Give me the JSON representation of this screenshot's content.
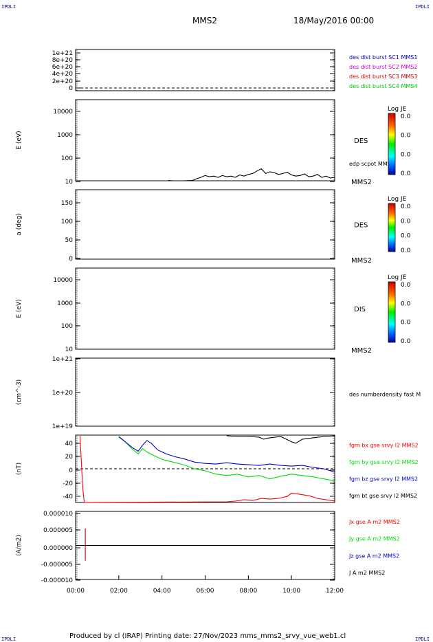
{
  "header": {
    "corner_left": "IPDLI",
    "corner_right": "IPDLI",
    "corner_bottom_left": "IPDLI",
    "corner_bottom_right": "IPDLI",
    "spacecraft": "MMS2",
    "date": "18/May/2016 00:00"
  },
  "footer": {
    "text": "Produced by cl (IRAP)   Printing date: 27/Nov/2023   mms_mms2_srvy_vue_web1.cl"
  },
  "colors": {
    "mms1": "#0000cc",
    "mms2": "#cc00cc",
    "mms3": "#cc0000",
    "mms4": "#00cc00",
    "bx": "#ff0000",
    "by": "#00dd00",
    "bz": "#0000cc",
    "bt": "#000000"
  },
  "chart_data": [
    {
      "type": "line",
      "id": "panel1",
      "ylabel": "",
      "yticks": [
        "1e+21",
        "8e+20",
        "6e+20",
        "4e+20",
        "2e+20",
        "0"
      ],
      "legend": [
        {
          "text": "des dist burst SC1 MMS1",
          "color": "#0000cc"
        },
        {
          "text": "des dist burst SC2 MMS2",
          "color": "#cc00cc"
        },
        {
          "text": "des dist burst SC3 MMS3",
          "color": "#cc0000"
        },
        {
          "text": "des dist burst SC4 MMS4",
          "color": "#00cc00"
        }
      ],
      "series": []
    },
    {
      "type": "line",
      "id": "panel2",
      "scale": "log",
      "ylabel": "E (eV)",
      "yticks": [
        "10000",
        "1000",
        "100",
        "10"
      ],
      "side_label": "DES",
      "sc_label": "MMS2",
      "series_label": "edp scpot MMS2",
      "colorbar": {
        "title": "Log JE",
        "ticks": [
          "0.0",
          "0.0",
          "0.0",
          "0.0"
        ]
      },
      "series": [
        {
          "name": "edp scpot MMS2",
          "color": "#000000",
          "x_hours": [
            4.3,
            4.5,
            5.0,
            5.4,
            5.6,
            5.8,
            6.0,
            6.2,
            6.4,
            6.6,
            6.8,
            7.0,
            7.2,
            7.4,
            7.6,
            7.8,
            8.0,
            8.2,
            8.4,
            8.6,
            8.8,
            9.0,
            9.2,
            9.4,
            9.6,
            9.8,
            10.0,
            10.2,
            10.4,
            10.6,
            10.8,
            11.0,
            11.2,
            11.4,
            11.6,
            11.8,
            12.0
          ],
          "y_ev": [
            11,
            10,
            10,
            11,
            13,
            15,
            18,
            16,
            17,
            15,
            18,
            16,
            17,
            15,
            19,
            17,
            20,
            22,
            28,
            35,
            22,
            26,
            24,
            20,
            22,
            25,
            19,
            17,
            18,
            21,
            16,
            17,
            20,
            15,
            17,
            14,
            15
          ]
        }
      ]
    },
    {
      "type": "line",
      "id": "panel3",
      "ylabel": "a (deg)",
      "yticks": [
        "150",
        "100",
        "50",
        "0"
      ],
      "side_label": "DES",
      "sc_label": "MMS2",
      "colorbar": {
        "title": "Log JE",
        "ticks": [
          "0.0",
          "0.0",
          "0.0",
          "0.0"
        ]
      },
      "series": []
    },
    {
      "type": "line",
      "id": "panel4",
      "scale": "log",
      "ylabel": "E (eV)",
      "yticks": [
        "10000",
        "1000",
        "100",
        "10"
      ],
      "side_label": "DIS",
      "sc_label": "MMS2",
      "colorbar": {
        "title": "Log JE",
        "ticks": [
          "0.0",
          "0.0",
          "0.0",
          "0.0"
        ]
      },
      "series": []
    },
    {
      "type": "line",
      "id": "panel5",
      "scale": "log",
      "ylabel": "(cm^-3)",
      "yticks": [
        "1e+21",
        "1e+20",
        "1e+19"
      ],
      "series_label": "des numberdensity fast M",
      "series": []
    },
    {
      "type": "line",
      "id": "panel6",
      "ylabel": "(nT)",
      "ylim": [
        -50,
        50
      ],
      "yticks": [
        "40",
        "20",
        "0",
        "-20",
        "-40"
      ],
      "legend": [
        {
          "text": "fgm bx gse srvy l2 MMS2",
          "color": "#ff0000"
        },
        {
          "text": "fgm by gse srvy l2 MMS2",
          "color": "#00dd00"
        },
        {
          "text": "fgm bz gse srvy l2 MMS2",
          "color": "#0000cc"
        },
        {
          "text": "fgm bt gse srvy l2 MMS2",
          "color": "#000000"
        }
      ],
      "series": [
        {
          "name": "fgm bx gse srvy l2 MMS2",
          "color": "#ff0000",
          "x_hours": [
            0.2,
            0.25,
            0.3,
            0.35,
            0.4,
            7.0,
            7.4,
            7.8,
            8.2,
            8.6,
            9.0,
            9.4,
            9.8,
            10.0,
            10.4,
            10.8,
            11.2,
            11.6,
            12.0
          ],
          "y": [
            49,
            20,
            -10,
            -35,
            -50,
            -49,
            -48,
            -46,
            -47,
            -44,
            -45,
            -44,
            -41,
            -36,
            -38,
            -40,
            -44,
            -46,
            -48
          ]
        },
        {
          "name": "fgm by gse srvy l2 MMS2",
          "color": "#00dd00",
          "x_hours": [
            2.0,
            2.3,
            2.6,
            2.9,
            3.1,
            3.3,
            3.6,
            4.0,
            4.5,
            5.0,
            5.5,
            6.0,
            6.5,
            7.0,
            7.5,
            8.0,
            8.5,
            9.0,
            9.5,
            10.0,
            10.5,
            11.0,
            11.5,
            12.0
          ],
          "y": [
            47,
            40,
            30,
            22,
            30,
            25,
            20,
            14,
            10,
            6,
            0,
            -3,
            -8,
            -10,
            -8,
            -12,
            -10,
            -15,
            -11,
            -8,
            -10,
            -12,
            -15,
            -18
          ]
        },
        {
          "name": "fgm bz gse srvy l2 MMS2",
          "color": "#0000cc",
          "x_hours": [
            2.0,
            2.3,
            2.6,
            2.9,
            3.1,
            3.3,
            3.5,
            3.8,
            4.2,
            4.6,
            5.0,
            5.5,
            6.0,
            6.5,
            7.0,
            7.5,
            8.0,
            8.5,
            9.0,
            9.5,
            10.0,
            10.5,
            11.0,
            11.5,
            12.0
          ],
          "y": [
            48,
            40,
            32,
            26,
            35,
            42,
            38,
            28,
            22,
            18,
            15,
            10,
            8,
            7,
            9,
            7,
            6,
            5,
            7,
            5,
            4,
            5,
            2,
            0,
            -5
          ]
        },
        {
          "name": "fgm bt gse srvy l2 MMS2",
          "color": "#000000",
          "x_hours": [
            7.0,
            7.5,
            8.0,
            8.5,
            8.7,
            9.0,
            9.5,
            10.0,
            10.2,
            10.5,
            11.0,
            11.5,
            12.0
          ],
          "y": [
            49,
            48,
            48,
            47,
            44,
            46,
            48,
            40,
            38,
            44,
            46,
            48,
            49
          ]
        }
      ]
    },
    {
      "type": "line",
      "id": "panel7",
      "ylabel": "(A/m2)",
      "ylim": [
        -1e-05,
        1e-05
      ],
      "yticks": [
        "0.000010",
        "0.000005",
        "0.000000",
        "-0.000005",
        "-0.000010"
      ],
      "legend": [
        {
          "text": "Jx gse A m2 MMS2",
          "color": "#ff0000"
        },
        {
          "text": "Jy gse A m2 MMS2",
          "color": "#00dd00"
        },
        {
          "text": "Jz gse A m2 MMS2",
          "color": "#0000cc"
        },
        {
          "text": "J A m2 MMS2",
          "color": "#000000"
        }
      ],
      "xticks": [
        "00:00",
        "02:00",
        "04:00",
        "06:00",
        "08:00",
        "10:00",
        "12:00"
      ],
      "series": [
        {
          "name": "J A m2 MMS2",
          "color": "#000000",
          "x_hours": [
            0.0,
            2.0,
            4.0,
            6.0,
            8.0,
            10.0,
            12.0
          ],
          "y": [
            0,
            0,
            0,
            0,
            0,
            0,
            0
          ]
        },
        {
          "name": "Jx gse A m2 MMS2",
          "color": "#cc0000",
          "x_hours": [
            0.45,
            0.45
          ],
          "y": [
            5e-06,
            -4.5e-06
          ]
        }
      ]
    }
  ]
}
